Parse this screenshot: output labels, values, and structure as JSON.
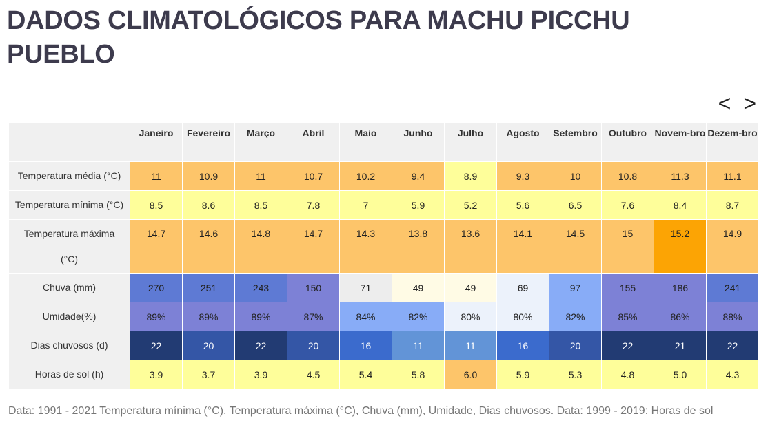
{
  "title": "DADOS CLIMATOLÓGICOS PARA MACHU PICCHU PUEBLO",
  "nav": {
    "prev": "<",
    "next": ">"
  },
  "table": {
    "months": [
      "Janeiro",
      "Fevereiro",
      "Março",
      "Abril",
      "Maio",
      "Junho",
      "Julho",
      "Agosto",
      "Setembro",
      "Outubro",
      "Novem-bro",
      "Dezem-bro"
    ],
    "rows": [
      {
        "label": "Temperatura média (°C)",
        "values": [
          "11",
          "10.9",
          "11",
          "10.7",
          "10.2",
          "9.4",
          "8.9",
          "9.3",
          "10",
          "10.8",
          "11.3",
          "11.1"
        ],
        "colors": [
          "#fdc56a",
          "#fdc56a",
          "#fdc56a",
          "#fdc56a",
          "#fdc56a",
          "#fdc56a",
          "#fefe9a",
          "#fdc56a",
          "#fdc56a",
          "#fdc56a",
          "#fdc56a",
          "#fdc56a"
        ]
      },
      {
        "label": "Temperatura mínima (°C)",
        "values": [
          "8.5",
          "8.6",
          "8.5",
          "7.8",
          "7",
          "5.9",
          "5.2",
          "5.6",
          "6.5",
          "7.6",
          "8.4",
          "8.7"
        ],
        "colors": [
          "#fefe9a",
          "#fefe9a",
          "#fefe9a",
          "#fefe9a",
          "#fefe9a",
          "#fefe9a",
          "#fefe9a",
          "#fefe9a",
          "#fefe9a",
          "#fefe9a",
          "#fefe9a",
          "#fefe9a"
        ]
      },
      {
        "label": "Temperatura máxima (°C)",
        "values": [
          "14.7",
          "14.6",
          "14.8",
          "14.7",
          "14.3",
          "13.8",
          "13.6",
          "14.1",
          "14.5",
          "15",
          "15.2",
          "14.9"
        ],
        "colors": [
          "#fdc56a",
          "#fdc56a",
          "#fdc56a",
          "#fdc56a",
          "#fdc56a",
          "#fdc56a",
          "#fdc56a",
          "#fdc56a",
          "#fdc56a",
          "#fdc56a",
          "#fca404",
          "#fdc56a"
        ]
      },
      {
        "label": "Chuva (mm)",
        "values": [
          "270",
          "251",
          "243",
          "150",
          "71",
          "49",
          "49",
          "69",
          "97",
          "155",
          "186",
          "241"
        ],
        "colors": [
          "#5e7ad4",
          "#5e7ad4",
          "#5e7ad4",
          "#7d81d6",
          "#ededed",
          "#fffbe5",
          "#fffbe5",
          "#ecf2fb",
          "#88acf7",
          "#7d81d6",
          "#7d81d6",
          "#5e7ad4"
        ]
      },
      {
        "label": "Umidade(%)",
        "values": [
          "89%",
          "89%",
          "89%",
          "87%",
          "84%",
          "82%",
          "80%",
          "80%",
          "82%",
          "85%",
          "86%",
          "88%"
        ],
        "colors": [
          "#7d81d6",
          "#7d81d6",
          "#7d81d6",
          "#7d81d6",
          "#88acf7",
          "#88acf7",
          "#ecf2fb",
          "#ecf2fb",
          "#88acf7",
          "#7d81d6",
          "#7d81d6",
          "#7d81d6"
        ]
      },
      {
        "label": "Dias chuvosos (d)",
        "values": [
          "22",
          "20",
          "22",
          "20",
          "16",
          "11",
          "11",
          "16",
          "20",
          "22",
          "21",
          "22"
        ],
        "colors": [
          "#223b73",
          "#3456a6",
          "#223b73",
          "#3456a6",
          "#3b6bcd",
          "#6294d7",
          "#6294d7",
          "#3b6bcd",
          "#3456a6",
          "#223b73",
          "#223b73",
          "#223b73"
        ],
        "text_color": "#ffffff"
      },
      {
        "label": "Horas de sol (h)",
        "values": [
          "3.9",
          "3.7",
          "3.9",
          "4.5",
          "5.4",
          "5.8",
          "6.0",
          "5.9",
          "5.3",
          "4.8",
          "5.0",
          "4.3"
        ],
        "colors": [
          "#fefe9a",
          "#fefe9a",
          "#fefe9a",
          "#fefe9a",
          "#fefe9a",
          "#fefe9a",
          "#fdc56a",
          "#fefe9a",
          "#fefe9a",
          "#fefe9a",
          "#fefe9a",
          "#fefe9a"
        ]
      }
    ]
  },
  "caption": "Data: 1991 - 2021 Temperatura mínima (°C), Temperatura máxima (°C), Chuva (mm), Umidade, Dias chuvosos. Data: 1999 - 2019: Horas de sol"
}
